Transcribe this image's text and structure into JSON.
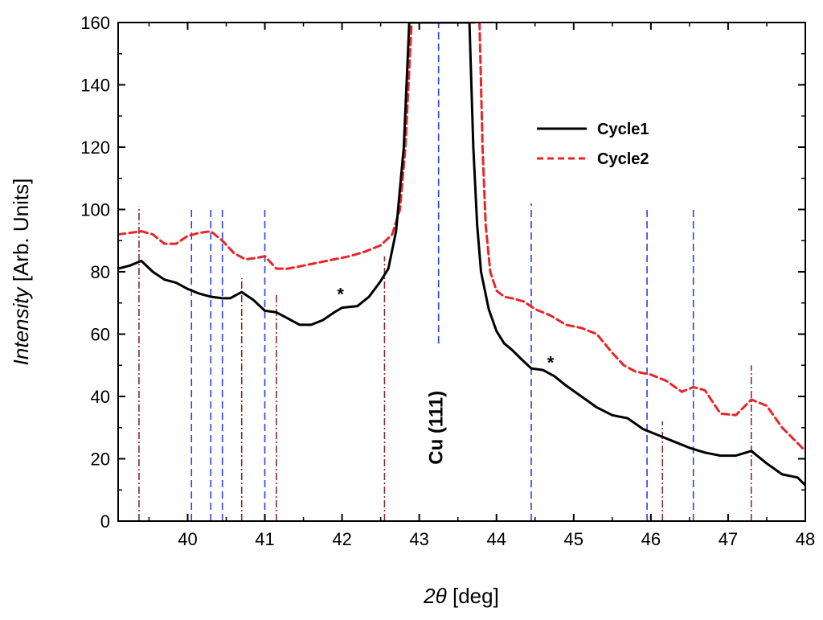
{
  "chart_data": {
    "type": "line",
    "title": "",
    "xlabel_italic": "2θ",
    "xlabel_rest": " [deg]",
    "ylabel_italic": "Intensity",
    "ylabel_rest": " [Arb. Units]",
    "xlim": [
      39.1,
      48.0
    ],
    "ylim": [
      0,
      160
    ],
    "xticks": [
      40,
      41,
      42,
      43,
      44,
      45,
      46,
      47,
      48
    ],
    "yticks": [
      0,
      20,
      40,
      60,
      80,
      100,
      120,
      140,
      160
    ],
    "xtick_labels": [
      "40",
      "41",
      "42",
      "43",
      "44",
      "45",
      "46",
      "47",
      "48"
    ],
    "ytick_labels": [
      "0",
      "20",
      "40",
      "60",
      "80",
      "100",
      "120",
      "140",
      "160"
    ],
    "series": [
      {
        "name": "Cycle1",
        "color": "#000000",
        "style": "solid",
        "x": [
          39.1,
          39.25,
          39.4,
          39.55,
          39.7,
          39.85,
          40.0,
          40.15,
          40.3,
          40.45,
          40.55,
          40.7,
          40.85,
          41.0,
          41.15,
          41.3,
          41.45,
          41.6,
          41.75,
          41.9,
          42.0,
          42.2,
          42.35,
          42.5,
          42.6,
          42.7,
          42.8,
          42.87,
          43.65,
          43.7,
          43.75,
          43.8,
          43.9,
          44.0,
          44.1,
          44.2,
          44.3,
          44.45,
          44.6,
          44.75,
          44.9,
          45.1,
          45.3,
          45.5,
          45.7,
          45.9,
          46.1,
          46.3,
          46.5,
          46.7,
          46.9,
          47.1,
          47.3,
          47.5,
          47.7,
          47.9,
          48.0
        ],
        "y": [
          81,
          82,
          83.5,
          80,
          77.5,
          76.5,
          74.5,
          73,
          72,
          71.5,
          71.5,
          73.5,
          71,
          67.5,
          67,
          65,
          63,
          63,
          64.5,
          67,
          68.5,
          69,
          72,
          77,
          81,
          93,
          120,
          160,
          160,
          120,
          95,
          80,
          68,
          61,
          57,
          55,
          52.5,
          49,
          48.5,
          46.5,
          43.5,
          40,
          36.5,
          34,
          33,
          29.5,
          27.5,
          25.5,
          23.5,
          22,
          21,
          21,
          22.5,
          18.5,
          15,
          14,
          11.5
        ]
      },
      {
        "name": "Cycle2",
        "color": "#e8262a",
        "style": "dashed",
        "x": [
          39.1,
          39.25,
          39.4,
          39.55,
          39.7,
          39.85,
          40.0,
          40.15,
          40.3,
          40.45,
          40.6,
          40.75,
          40.9,
          41.0,
          41.15,
          41.3,
          41.5,
          41.7,
          41.9,
          42.1,
          42.3,
          42.5,
          42.65,
          42.75,
          42.82,
          42.9,
          43.78,
          43.82,
          43.86,
          43.92,
          44.0,
          44.1,
          44.2,
          44.35,
          44.5,
          44.7,
          44.9,
          45.1,
          45.3,
          45.5,
          45.65,
          45.8,
          46.0,
          46.2,
          46.4,
          46.55,
          46.7,
          46.9,
          47.1,
          47.3,
          47.5,
          47.7,
          47.9,
          48.0
        ],
        "y": [
          92,
          92.5,
          93,
          92,
          89,
          89,
          91.5,
          92.5,
          93,
          90,
          86,
          84,
          84.5,
          85,
          81,
          81,
          82,
          83,
          84,
          85,
          86.5,
          88.5,
          92,
          100,
          120,
          160,
          160,
          120,
          95,
          80,
          74,
          72,
          71.5,
          70.5,
          68,
          66,
          63,
          62,
          60,
          54,
          50,
          48,
          47,
          45,
          41.5,
          43,
          42,
          34.5,
          34,
          39,
          37,
          30,
          25,
          22.5
        ]
      }
    ],
    "reference_lines_blue": [
      {
        "x": 40.05,
        "top": 100
      },
      {
        "x": 40.3,
        "top": 100
      },
      {
        "x": 40.45,
        "top": 100
      },
      {
        "x": 41.0,
        "top": 100
      },
      {
        "x": 43.25,
        "top": 160,
        "bottom": 57
      },
      {
        "x": 44.45,
        "top": 102
      },
      {
        "x": 45.95,
        "top": 101
      },
      {
        "x": 46.55,
        "top": 101
      }
    ],
    "reference_lines_brown": [
      {
        "x": 39.37,
        "top": 101
      },
      {
        "x": 40.7,
        "top": 78
      },
      {
        "x": 41.15,
        "top": 73
      },
      {
        "x": 42.55,
        "top": 85
      },
      {
        "x": 46.15,
        "top": 32
      },
      {
        "x": 47.3,
        "top": 50
      }
    ],
    "annotations": [
      {
        "text": "*",
        "x": 41.98,
        "y": 74
      },
      {
        "text": "*",
        "x": 44.7,
        "y": 52
      },
      {
        "text": "Cu (111)",
        "x": 43.3,
        "y": 30,
        "rotation": -90
      }
    ],
    "legend": {
      "position": "upper-right",
      "entries": [
        "Cycle1",
        "Cycle2"
      ]
    },
    "colors": {
      "blue_ref": "#2a3ff0",
      "brown_ref": "#8b2a2a"
    }
  }
}
